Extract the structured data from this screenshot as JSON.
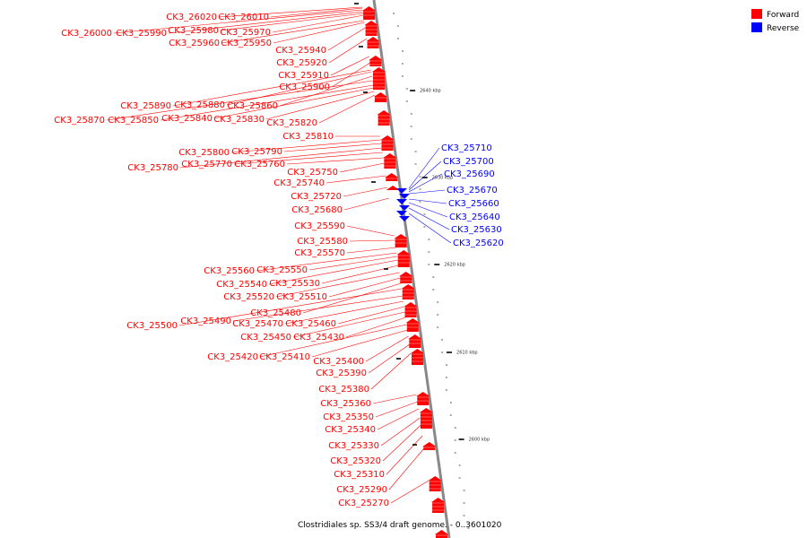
{
  "caption": "Clostridiales sp. SS3/4 draft genome. - 0..3601020",
  "legend": [
    {
      "label": "Forward",
      "color": "#ff0000"
    },
    {
      "label": "Reverse",
      "color": "#0000ff"
    }
  ],
  "colors": {
    "forward": "#ff0000",
    "reverse": "#0000ff",
    "backbone": "#888888"
  },
  "ticks": [
    "2640 kbp",
    "2630 kbp",
    "2620 kbp",
    "2610 kbp",
    "2600 kbp"
  ],
  "forward_labels": [
    "CK3_26020",
    "CK3_26010",
    "CK3_26000",
    "CK3_25990",
    "CK3_25980",
    "CK3_25970",
    "CK3_25960",
    "CK3_25950",
    "CK3_25940",
    "CK3_25920",
    "CK3_25910",
    "CK3_25900",
    "CK3_25890",
    "CK3_25880",
    "CK3_25860",
    "CK3_25870",
    "CK3_25850",
    "CK3_25840",
    "CK3_25830",
    "CK3_25820",
    "CK3_25810",
    "CK3_25800",
    "CK3_25790",
    "CK3_25780",
    "CK3_25770",
    "CK3_25760",
    "CK3_25750",
    "CK3_25740",
    "CK3_25720",
    "CK3_25680",
    "CK3_25590",
    "CK3_25580",
    "CK3_25570",
    "CK3_25560",
    "CK3_25550",
    "CK3_25540",
    "CK3_25530",
    "CK3_25520",
    "CK3_25510",
    "CK3_25480",
    "CK3_25500",
    "CK3_25490",
    "CK3_25470",
    "CK3_25460",
    "CK3_25450",
    "CK3_25430",
    "CK3_25420",
    "CK3_25410",
    "CK3_25400",
    "CK3_25390",
    "CK3_25380",
    "CK3_25360",
    "CK3_25350",
    "CK3_25340",
    "CK3_25330",
    "CK3_25320",
    "CK3_25310",
    "CK3_25290",
    "CK3_25270"
  ],
  "reverse_labels": [
    "CK3_25710",
    "CK3_25700",
    "CK3_25690",
    "CK3_25670",
    "CK3_25660",
    "CK3_25640",
    "CK3_25630",
    "CK3_25620"
  ]
}
